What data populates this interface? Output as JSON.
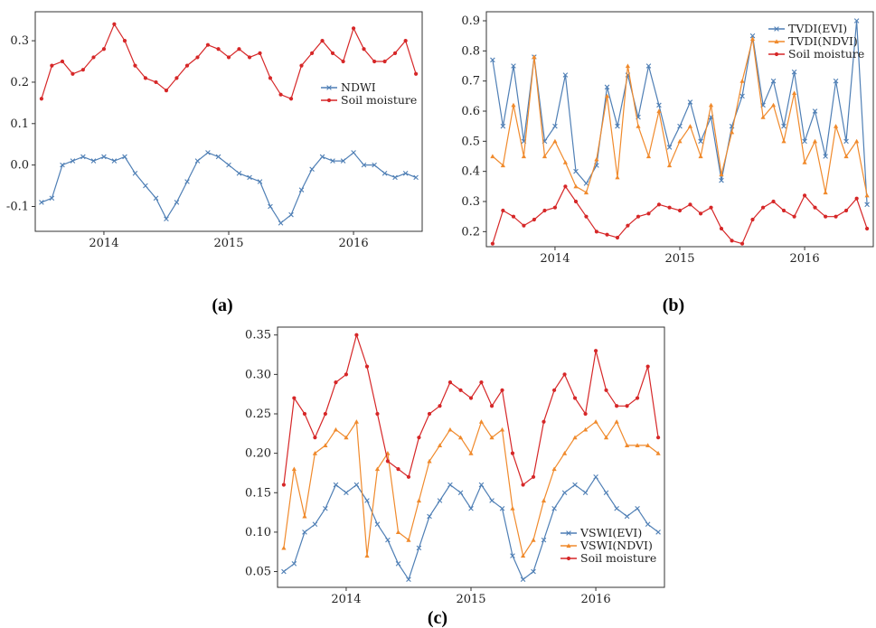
{
  "chart_data": [
    {
      "panel": "(a)",
      "type": "line",
      "xlabel": "",
      "ylabel": "",
      "xticks": [
        "2014",
        "2015",
        "2016"
      ],
      "yticks": [
        "-0.1",
        "0.0",
        "0.1",
        "0.2",
        "0.3"
      ],
      "xlim": [
        2013.45,
        2016.55
      ],
      "ylim": [
        -0.16,
        0.37
      ],
      "legend_position": "center-right",
      "series": [
        {
          "name": "NDWI",
          "color": "#4f7fb5",
          "marker": "x",
          "x": [
            2013.5,
            2013.583,
            2013.667,
            2013.75,
            2013.833,
            2013.917,
            2014.0,
            2014.083,
            2014.167,
            2014.25,
            2014.333,
            2014.417,
            2014.5,
            2014.583,
            2014.667,
            2014.75,
            2014.833,
            2014.917,
            2015.0,
            2015.083,
            2015.167,
            2015.25,
            2015.333,
            2015.417,
            2015.5,
            2015.583,
            2015.667,
            2015.75,
            2015.833,
            2015.917,
            2016.0,
            2016.083,
            2016.167,
            2016.25,
            2016.333,
            2016.417,
            2016.5
          ],
          "y": [
            -0.09,
            -0.08,
            0.0,
            0.01,
            0.02,
            0.01,
            0.02,
            0.01,
            0.02,
            -0.02,
            -0.05,
            -0.08,
            -0.13,
            -0.09,
            -0.04,
            0.01,
            0.03,
            0.02,
            0.0,
            -0.02,
            -0.03,
            -0.04,
            -0.1,
            -0.14,
            -0.12,
            -0.06,
            -0.01,
            0.02,
            0.01,
            0.01,
            0.03,
            0.0,
            0.0,
            -0.02,
            -0.03,
            -0.02,
            -0.03
          ]
        },
        {
          "name": "Soil moisture",
          "color": "#d62728",
          "marker": "dot",
          "x": [
            2013.5,
            2013.583,
            2013.667,
            2013.75,
            2013.833,
            2013.917,
            2014.0,
            2014.083,
            2014.167,
            2014.25,
            2014.333,
            2014.417,
            2014.5,
            2014.583,
            2014.667,
            2014.75,
            2014.833,
            2014.917,
            2015.0,
            2015.083,
            2015.167,
            2015.25,
            2015.333,
            2015.417,
            2015.5,
            2015.583,
            2015.667,
            2015.75,
            2015.833,
            2015.917,
            2016.0,
            2016.083,
            2016.167,
            2016.25,
            2016.333,
            2016.417,
            2016.5
          ],
          "y": [
            0.16,
            0.24,
            0.25,
            0.22,
            0.23,
            0.26,
            0.28,
            0.34,
            0.3,
            0.24,
            0.21,
            0.2,
            0.18,
            0.21,
            0.24,
            0.26,
            0.29,
            0.28,
            0.26,
            0.28,
            0.26,
            0.27,
            0.21,
            0.17,
            0.16,
            0.24,
            0.27,
            0.3,
            0.27,
            0.25,
            0.33,
            0.28,
            0.25,
            0.25,
            0.27,
            0.3,
            0.22
          ]
        }
      ]
    },
    {
      "panel": "(b)",
      "type": "line",
      "xlabel": "",
      "ylabel": "",
      "xticks": [
        "2014",
        "2015",
        "2016"
      ],
      "yticks": [
        "0.2",
        "0.3",
        "0.4",
        "0.5",
        "0.6",
        "0.7",
        "0.8",
        "0.9"
      ],
      "xlim": [
        2013.45,
        2016.55
      ],
      "ylim": [
        0.15,
        0.93
      ],
      "legend_position": "top-right",
      "series": [
        {
          "name": "TVDI(EVI)",
          "color": "#4f7fb5",
          "marker": "x",
          "x": [
            2013.5,
            2013.583,
            2013.667,
            2013.75,
            2013.833,
            2013.917,
            2014.0,
            2014.083,
            2014.167,
            2014.25,
            2014.333,
            2014.417,
            2014.5,
            2014.583,
            2014.667,
            2014.75,
            2014.833,
            2014.917,
            2015.0,
            2015.083,
            2015.167,
            2015.25,
            2015.333,
            2015.417,
            2015.5,
            2015.583,
            2015.667,
            2015.75,
            2015.833,
            2015.917,
            2016.0,
            2016.083,
            2016.167,
            2016.25,
            2016.333,
            2016.417,
            2016.5
          ],
          "y": [
            0.77,
            0.55,
            0.75,
            0.5,
            0.78,
            0.5,
            0.55,
            0.72,
            0.4,
            0.36,
            0.42,
            0.68,
            0.55,
            0.72,
            0.58,
            0.75,
            0.62,
            0.48,
            0.55,
            0.63,
            0.5,
            0.58,
            0.37,
            0.55,
            0.65,
            0.85,
            0.62,
            0.7,
            0.55,
            0.73,
            0.5,
            0.6,
            0.45,
            0.7,
            0.5,
            0.9,
            0.29
          ]
        },
        {
          "name": "TVDI(NDVI)",
          "color": "#f08a2c",
          "marker": "triangle",
          "x": [
            2013.5,
            2013.583,
            2013.667,
            2013.75,
            2013.833,
            2013.917,
            2014.0,
            2014.083,
            2014.167,
            2014.25,
            2014.333,
            2014.417,
            2014.5,
            2014.583,
            2014.667,
            2014.75,
            2014.833,
            2014.917,
            2015.0,
            2015.083,
            2015.167,
            2015.25,
            2015.333,
            2015.417,
            2015.5,
            2015.583,
            2015.667,
            2015.75,
            2015.833,
            2015.917,
            2016.0,
            2016.083,
            2016.167,
            2016.25,
            2016.333,
            2016.417,
            2016.5
          ],
          "y": [
            0.45,
            0.42,
            0.62,
            0.45,
            0.78,
            0.45,
            0.5,
            0.43,
            0.35,
            0.33,
            0.44,
            0.65,
            0.38,
            0.75,
            0.55,
            0.45,
            0.6,
            0.42,
            0.5,
            0.55,
            0.45,
            0.62,
            0.39,
            0.53,
            0.7,
            0.84,
            0.58,
            0.62,
            0.5,
            0.66,
            0.43,
            0.5,
            0.33,
            0.55,
            0.45,
            0.5,
            0.32
          ]
        },
        {
          "name": "Soil moisture",
          "color": "#d62728",
          "marker": "dot",
          "x": [
            2013.5,
            2013.583,
            2013.667,
            2013.75,
            2013.833,
            2013.917,
            2014.0,
            2014.083,
            2014.167,
            2014.25,
            2014.333,
            2014.417,
            2014.5,
            2014.583,
            2014.667,
            2014.75,
            2014.833,
            2014.917,
            2015.0,
            2015.083,
            2015.167,
            2015.25,
            2015.333,
            2015.417,
            2015.5,
            2015.583,
            2015.667,
            2015.75,
            2015.833,
            2015.917,
            2016.0,
            2016.083,
            2016.167,
            2016.25,
            2016.333,
            2016.417,
            2016.5
          ],
          "y": [
            0.16,
            0.27,
            0.25,
            0.22,
            0.24,
            0.27,
            0.28,
            0.35,
            0.3,
            0.25,
            0.2,
            0.19,
            0.18,
            0.22,
            0.25,
            0.26,
            0.29,
            0.28,
            0.27,
            0.29,
            0.26,
            0.28,
            0.21,
            0.17,
            0.16,
            0.24,
            0.28,
            0.3,
            0.27,
            0.25,
            0.32,
            0.28,
            0.25,
            0.25,
            0.27,
            0.31,
            0.21
          ]
        }
      ]
    },
    {
      "panel": "(c)",
      "type": "line",
      "xlabel": "",
      "ylabel": "",
      "xticks": [
        "2014",
        "2015",
        "2016"
      ],
      "yticks": [
        "0.05",
        "0.10",
        "0.15",
        "0.20",
        "0.25",
        "0.30",
        "0.35"
      ],
      "xlim": [
        2013.45,
        2016.55
      ],
      "ylim": [
        0.03,
        0.36
      ],
      "legend_position": "bottom-right",
      "series": [
        {
          "name": "VSWI(EVI)",
          "color": "#4f7fb5",
          "marker": "x",
          "x": [
            2013.5,
            2013.583,
            2013.667,
            2013.75,
            2013.833,
            2013.917,
            2014.0,
            2014.083,
            2014.167,
            2014.25,
            2014.333,
            2014.417,
            2014.5,
            2014.583,
            2014.667,
            2014.75,
            2014.833,
            2014.917,
            2015.0,
            2015.083,
            2015.167,
            2015.25,
            2015.333,
            2015.417,
            2015.5,
            2015.583,
            2015.667,
            2015.75,
            2015.833,
            2015.917,
            2016.0,
            2016.083,
            2016.167,
            2016.25,
            2016.333,
            2016.417,
            2016.5
          ],
          "y": [
            0.05,
            0.06,
            0.1,
            0.11,
            0.13,
            0.16,
            0.15,
            0.16,
            0.14,
            0.11,
            0.09,
            0.06,
            0.04,
            0.08,
            0.12,
            0.14,
            0.16,
            0.15,
            0.13,
            0.16,
            0.14,
            0.13,
            0.07,
            0.04,
            0.05,
            0.09,
            0.13,
            0.15,
            0.16,
            0.15,
            0.17,
            0.15,
            0.13,
            0.12,
            0.13,
            0.11,
            0.1
          ]
        },
        {
          "name": "VSWI(NDVI)",
          "color": "#f08a2c",
          "marker": "triangle",
          "x": [
            2013.5,
            2013.583,
            2013.667,
            2013.75,
            2013.833,
            2013.917,
            2014.0,
            2014.083,
            2014.167,
            2014.25,
            2014.333,
            2014.417,
            2014.5,
            2014.583,
            2014.667,
            2014.75,
            2014.833,
            2014.917,
            2015.0,
            2015.083,
            2015.167,
            2015.25,
            2015.333,
            2015.417,
            2015.5,
            2015.583,
            2015.667,
            2015.75,
            2015.833,
            2015.917,
            2016.0,
            2016.083,
            2016.167,
            2016.25,
            2016.333,
            2016.417,
            2016.5
          ],
          "y": [
            0.08,
            0.18,
            0.12,
            0.2,
            0.21,
            0.23,
            0.22,
            0.24,
            0.07,
            0.18,
            0.2,
            0.1,
            0.09,
            0.14,
            0.19,
            0.21,
            0.23,
            0.22,
            0.2,
            0.24,
            0.22,
            0.23,
            0.13,
            0.07,
            0.09,
            0.14,
            0.18,
            0.2,
            0.22,
            0.23,
            0.24,
            0.22,
            0.24,
            0.21,
            0.21,
            0.21,
            0.2
          ]
        },
        {
          "name": "Soil moisture",
          "color": "#d62728",
          "marker": "dot",
          "x": [
            2013.5,
            2013.583,
            2013.667,
            2013.75,
            2013.833,
            2013.917,
            2014.0,
            2014.083,
            2014.167,
            2014.25,
            2014.333,
            2014.417,
            2014.5,
            2014.583,
            2014.667,
            2014.75,
            2014.833,
            2014.917,
            2015.0,
            2015.083,
            2015.167,
            2015.25,
            2015.333,
            2015.417,
            2015.5,
            2015.583,
            2015.667,
            2015.75,
            2015.833,
            2015.917,
            2016.0,
            2016.083,
            2016.167,
            2016.25,
            2016.333,
            2016.417,
            2016.5
          ],
          "y": [
            0.16,
            0.27,
            0.25,
            0.22,
            0.25,
            0.29,
            0.3,
            0.35,
            0.31,
            0.25,
            0.19,
            0.18,
            0.17,
            0.22,
            0.25,
            0.26,
            0.29,
            0.28,
            0.27,
            0.29,
            0.26,
            0.28,
            0.2,
            0.16,
            0.17,
            0.24,
            0.28,
            0.3,
            0.27,
            0.25,
            0.33,
            0.28,
            0.26,
            0.26,
            0.27,
            0.31,
            0.22
          ]
        }
      ]
    }
  ]
}
